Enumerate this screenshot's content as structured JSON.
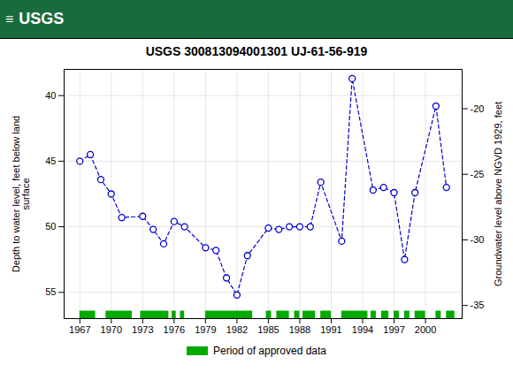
{
  "chart_data": {
    "type": "line",
    "title": "USGS 300813094001301 UJ-61-56-919",
    "annotations": [
      "≡",
      "USGS"
    ],
    "header_color": "#1a6b3c",
    "x_label": null,
    "y_label": "Depth to water level, feet below land\nsurface",
    "y2_label": "Groundwater level above NGVD 1929, feet",
    "x": [
      1967,
      1968,
      1969,
      1970,
      1971,
      1973,
      1974,
      1975,
      1976,
      1977,
      1979,
      1980,
      1981,
      1982,
      1983,
      1985,
      1986,
      1987,
      1988,
      1989,
      1990,
      1992,
      1993,
      1995,
      1996,
      1997,
      1998,
      1999,
      2001,
      2002
    ],
    "values": [
      45.0,
      44.5,
      46.4,
      47.5,
      49.3,
      49.2,
      50.2,
      51.3,
      49.6,
      50.0,
      51.6,
      51.8,
      53.9,
      55.2,
      52.2,
      50.1,
      50.2,
      50.0,
      50.0,
      50.0,
      46.6,
      51.1,
      38.7,
      47.2,
      47.0,
      47.4,
      52.5,
      47.4,
      40.8,
      47.0
    ],
    "color": "#0000cc",
    "line_style": "dashed",
    "marker": "circle",
    "xlim": [
      1965.5,
      2003.5
    ],
    "xticks": [
      1967,
      1970,
      1973,
      1976,
      1979,
      1982,
      1985,
      1988,
      1991,
      1994,
      1997,
      2000
    ],
    "ylim": [
      57,
      38
    ],
    "yticks": [
      40,
      45,
      50,
      55
    ],
    "y2lim": [
      -36,
      -17
    ],
    "y2ticks": [
      -20,
      -25,
      -30,
      -35
    ],
    "grid": true,
    "legend": "bottom",
    "approved_periods": {
      "name": "Period of approved data",
      "color": "#00aa00",
      "segments": [
        [
          1967.0,
          1968.5
        ],
        [
          1969.5,
          1972.0
        ],
        [
          1972.8,
          1975.5
        ],
        [
          1975.8,
          1976.2
        ],
        [
          1976.6,
          1977.0
        ],
        [
          1979.0,
          1983.5
        ],
        [
          1984.8,
          1985.3
        ],
        [
          1985.8,
          1987.0
        ],
        [
          1987.5,
          1988.0
        ],
        [
          1988.3,
          1989.5
        ],
        [
          1990.0,
          1991.0
        ],
        [
          1992.0,
          1994.5
        ],
        [
          1994.8,
          1995.3
        ],
        [
          1995.8,
          1996.5
        ],
        [
          1997.0,
          1997.5
        ],
        [
          1998.0,
          1998.5
        ],
        [
          1999.0,
          2000.0
        ],
        [
          2001.0,
          2001.5
        ],
        [
          2002.0,
          2002.8
        ]
      ]
    }
  }
}
